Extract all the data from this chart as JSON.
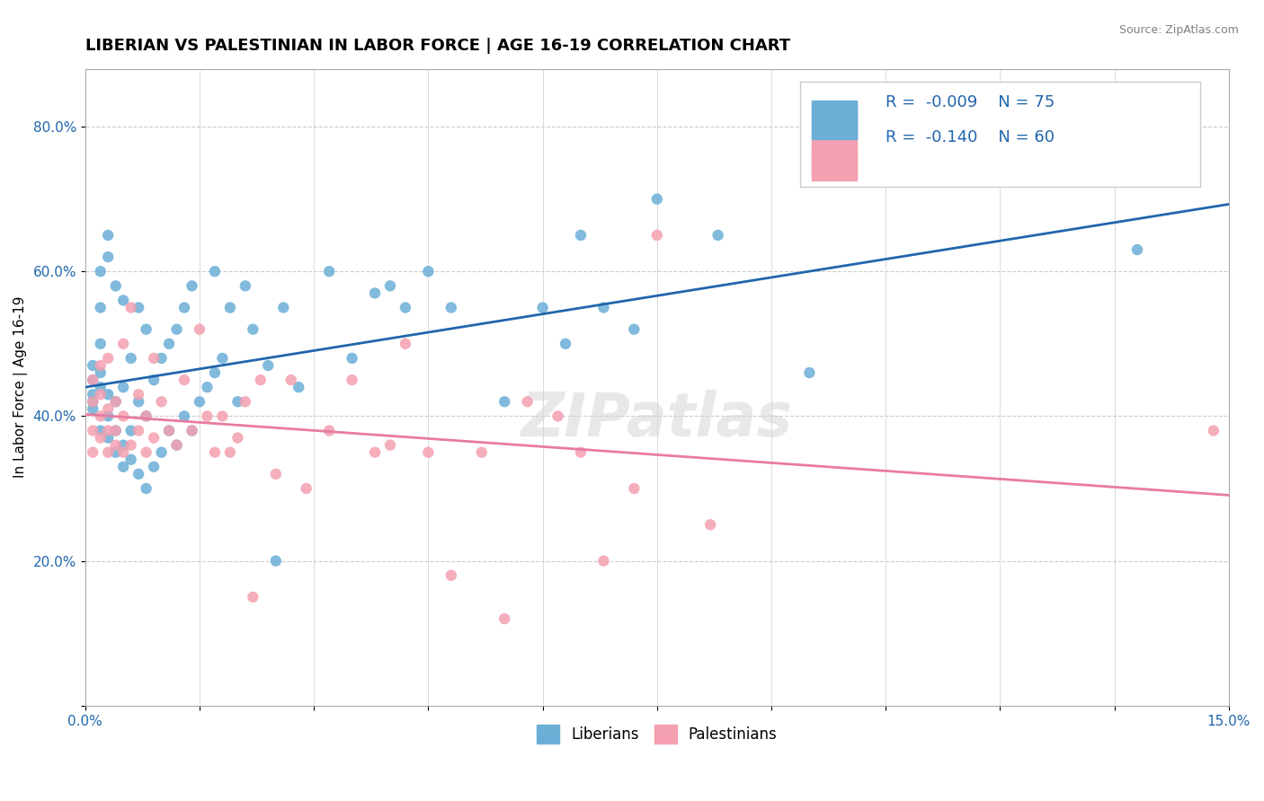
{
  "title": "LIBERIAN VS PALESTINIAN IN LABOR FORCE | AGE 16-19 CORRELATION CHART",
  "source_text": "Source: ZipAtlas.com",
  "xlabel": "",
  "ylabel": "In Labor Force | Age 16-19",
  "xlim": [
    0.0,
    0.15
  ],
  "ylim": [
    0.0,
    0.88
  ],
  "xticks": [
    0.0,
    0.015,
    0.03,
    0.045,
    0.06,
    0.075,
    0.09,
    0.105,
    0.12,
    0.135,
    0.15
  ],
  "xticklabels": [
    "0.0%",
    "",
    "",
    "",
    "",
    "",
    "",
    "",
    "",
    "",
    "15.0%"
  ],
  "ytick_positions": [
    0.0,
    0.2,
    0.4,
    0.6,
    0.8
  ],
  "yticklabels": [
    "",
    "20.0%",
    "40.0%",
    "60.0%",
    "80.0%"
  ],
  "liberian_color": "#6baed6",
  "palestinian_color": "#f4a0b0",
  "liberian_line_color": "#2166ac",
  "palestinian_line_color": "#e87ba0",
  "R_liberian": -0.009,
  "N_liberian": 75,
  "R_palestinian": -0.14,
  "N_palestinian": 60,
  "legend_color": "#2166ac",
  "grid_color": "#cccccc",
  "background_color": "#ffffff",
  "liberian_x": [
    0.001,
    0.001,
    0.001,
    0.001,
    0.001,
    0.002,
    0.002,
    0.002,
    0.002,
    0.002,
    0.002,
    0.003,
    0.003,
    0.003,
    0.003,
    0.003,
    0.004,
    0.004,
    0.004,
    0.004,
    0.005,
    0.005,
    0.005,
    0.005,
    0.006,
    0.006,
    0.006,
    0.007,
    0.007,
    0.007,
    0.008,
    0.008,
    0.008,
    0.009,
    0.009,
    0.01,
    0.01,
    0.011,
    0.011,
    0.012,
    0.012,
    0.013,
    0.013,
    0.014,
    0.014,
    0.015,
    0.016,
    0.017,
    0.017,
    0.018,
    0.019,
    0.02,
    0.021,
    0.022,
    0.024,
    0.025,
    0.026,
    0.028,
    0.032,
    0.035,
    0.038,
    0.04,
    0.042,
    0.045,
    0.048,
    0.055,
    0.06,
    0.063,
    0.065,
    0.068,
    0.072,
    0.075,
    0.083,
    0.095,
    0.138
  ],
  "liberian_y": [
    0.43,
    0.45,
    0.47,
    0.42,
    0.41,
    0.44,
    0.38,
    0.46,
    0.5,
    0.55,
    0.6,
    0.37,
    0.4,
    0.43,
    0.62,
    0.65,
    0.35,
    0.38,
    0.42,
    0.58,
    0.33,
    0.36,
    0.44,
    0.56,
    0.34,
    0.38,
    0.48,
    0.32,
    0.42,
    0.55,
    0.3,
    0.4,
    0.52,
    0.33,
    0.45,
    0.35,
    0.48,
    0.38,
    0.5,
    0.36,
    0.52,
    0.4,
    0.55,
    0.38,
    0.58,
    0.42,
    0.44,
    0.46,
    0.6,
    0.48,
    0.55,
    0.42,
    0.58,
    0.52,
    0.47,
    0.2,
    0.55,
    0.44,
    0.6,
    0.48,
    0.57,
    0.58,
    0.55,
    0.6,
    0.55,
    0.42,
    0.55,
    0.5,
    0.65,
    0.55,
    0.52,
    0.7,
    0.65,
    0.46,
    0.63
  ],
  "palestinian_x": [
    0.001,
    0.001,
    0.001,
    0.001,
    0.002,
    0.002,
    0.002,
    0.002,
    0.003,
    0.003,
    0.003,
    0.003,
    0.004,
    0.004,
    0.004,
    0.005,
    0.005,
    0.005,
    0.006,
    0.006,
    0.007,
    0.007,
    0.008,
    0.008,
    0.009,
    0.009,
    0.01,
    0.011,
    0.012,
    0.013,
    0.014,
    0.015,
    0.016,
    0.017,
    0.018,
    0.019,
    0.02,
    0.021,
    0.022,
    0.023,
    0.025,
    0.027,
    0.029,
    0.032,
    0.035,
    0.038,
    0.04,
    0.042,
    0.045,
    0.048,
    0.052,
    0.055,
    0.058,
    0.062,
    0.065,
    0.068,
    0.072,
    0.075,
    0.082,
    0.148
  ],
  "palestinian_y": [
    0.42,
    0.45,
    0.38,
    0.35,
    0.4,
    0.37,
    0.43,
    0.47,
    0.38,
    0.35,
    0.41,
    0.48,
    0.36,
    0.42,
    0.38,
    0.35,
    0.4,
    0.5,
    0.36,
    0.55,
    0.38,
    0.43,
    0.35,
    0.4,
    0.37,
    0.48,
    0.42,
    0.38,
    0.36,
    0.45,
    0.38,
    0.52,
    0.4,
    0.35,
    0.4,
    0.35,
    0.37,
    0.42,
    0.15,
    0.45,
    0.32,
    0.45,
    0.3,
    0.38,
    0.45,
    0.35,
    0.36,
    0.5,
    0.35,
    0.18,
    0.35,
    0.12,
    0.42,
    0.4,
    0.35,
    0.2,
    0.3,
    0.65,
    0.25,
    0.38
  ],
  "watermark_text": "ZIPatlas",
  "title_fontsize": 13,
  "axis_label_fontsize": 11,
  "tick_fontsize": 11,
  "legend_fontsize": 13
}
